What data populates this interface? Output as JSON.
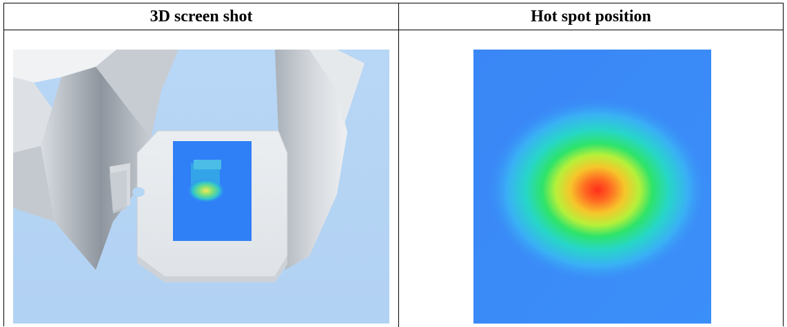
{
  "table": {
    "headers": [
      {
        "label": "3D screen shot"
      },
      {
        "label": "Hot spot position"
      }
    ]
  },
  "colors": {
    "sky": "#b6d6f6",
    "surface": "#e9ecef",
    "plate_blue": "#2f7ff7",
    "hot": "#ff3a1c"
  }
}
